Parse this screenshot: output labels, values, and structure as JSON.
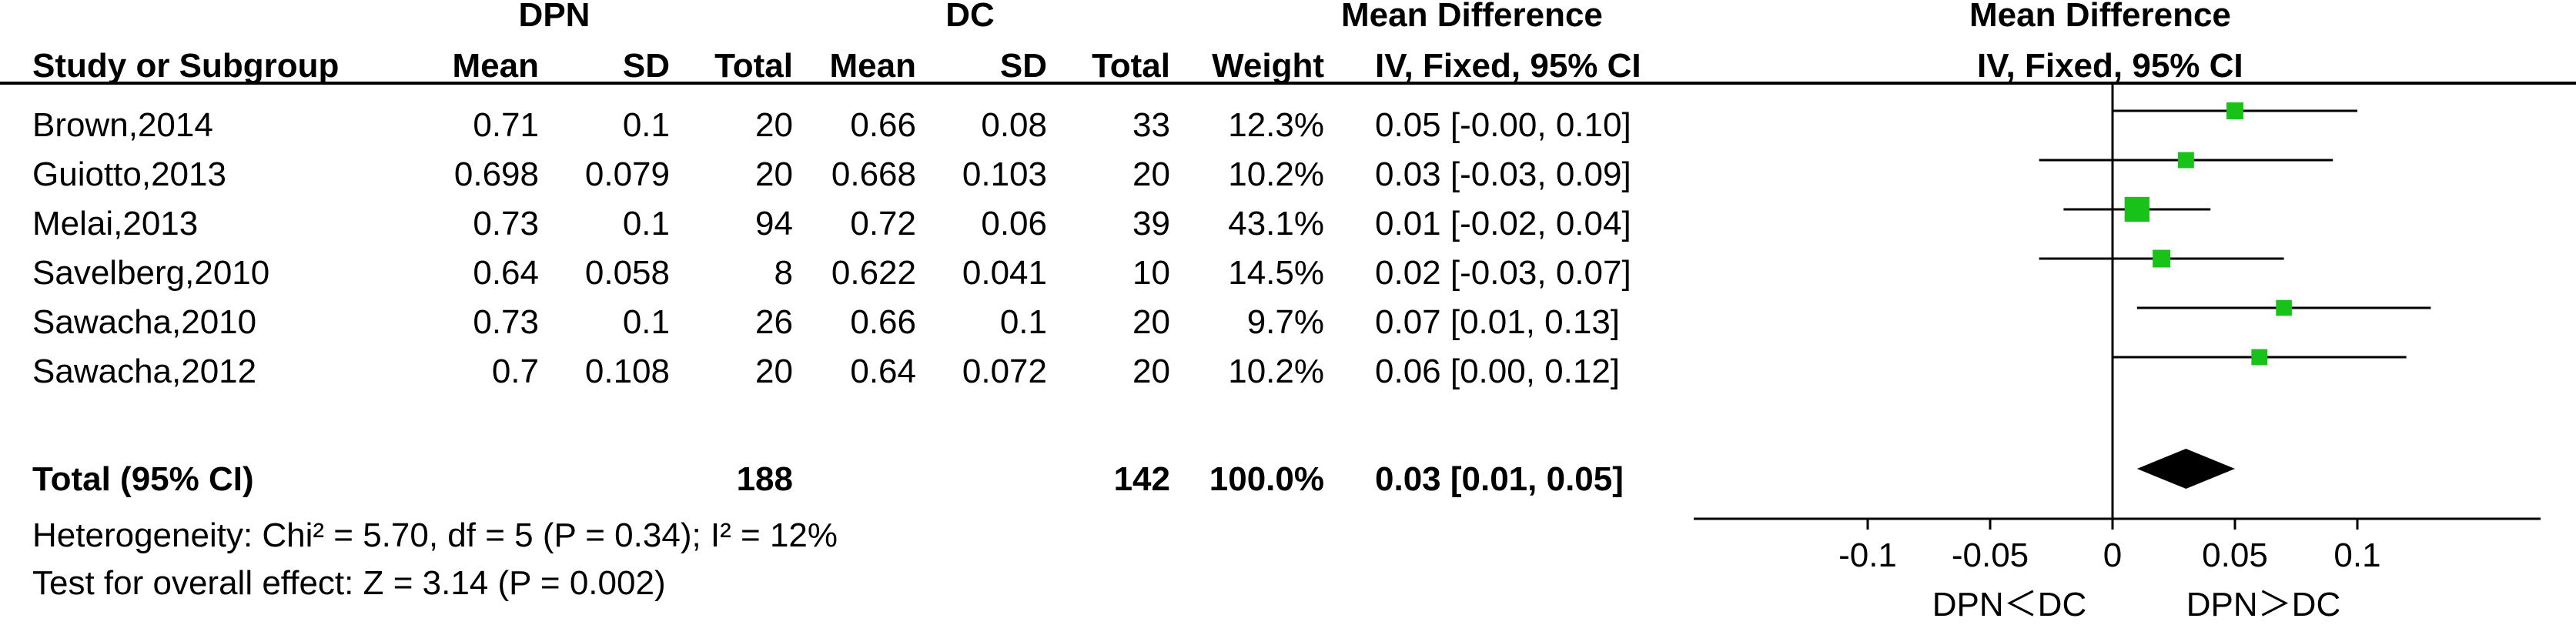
{
  "headers": {
    "group_dpn": "DPN",
    "group_dc": "DC",
    "mean_diff": "Mean Difference",
    "study_col": "Study or Subgroup",
    "mean": "Mean",
    "sd": "SD",
    "total": "Total",
    "weight": "Weight",
    "method": "IV, Fixed, 95% CI",
    "plot_title": "Mean Difference",
    "plot_method": "IV, Fixed, 95% CI"
  },
  "studies": [
    {
      "name": "Brown,2014",
      "dpn_mean": "0.71",
      "dpn_sd": "0.1",
      "dpn_total": "20",
      "dc_mean": "0.66",
      "dc_sd": "0.08",
      "dc_total": "33",
      "weight": "12.3%",
      "ci": "0.05 [-0.00, 0.10]"
    },
    {
      "name": "Guiotto,2013",
      "dpn_mean": "0.698",
      "dpn_sd": "0.079",
      "dpn_total": "20",
      "dc_mean": "0.668",
      "dc_sd": "0.103",
      "dc_total": "20",
      "weight": "10.2%",
      "ci": "0.03 [-0.03, 0.09]"
    },
    {
      "name": "Melai,2013",
      "dpn_mean": "0.73",
      "dpn_sd": "0.1",
      "dpn_total": "94",
      "dc_mean": "0.72",
      "dc_sd": "0.06",
      "dc_total": "39",
      "weight": "43.1%",
      "ci": "0.01 [-0.02, 0.04]"
    },
    {
      "name": "Savelberg,2010",
      "dpn_mean": "0.64",
      "dpn_sd": "0.058",
      "dpn_total": "8",
      "dc_mean": "0.622",
      "dc_sd": "0.041",
      "dc_total": "10",
      "weight": "14.5%",
      "ci": "0.02 [-0.03, 0.07]"
    },
    {
      "name": "Sawacha,2010",
      "dpn_mean": "0.73",
      "dpn_sd": "0.1",
      "dpn_total": "26",
      "dc_mean": "0.66",
      "dc_sd": "0.1",
      "dc_total": "20",
      "weight": "9.7%",
      "ci": "0.07 [0.01, 0.13]"
    },
    {
      "name": "Sawacha,2012",
      "dpn_mean": "0.7",
      "dpn_sd": "0.108",
      "dpn_total": "20",
      "dc_mean": "0.64",
      "dc_sd": "0.072",
      "dc_total": "20",
      "weight": "10.2%",
      "ci": "0.06 [0.00, 0.12]"
    }
  ],
  "total_row": {
    "label": "Total (95% CI)",
    "dpn_total": "188",
    "dc_total": "142",
    "weight": "100.0%",
    "ci": "0.03 [0.01, 0.05]"
  },
  "heterogeneity": "Heterogeneity: Chi² = 5.70, df = 5 (P = 0.34); I² = 12%",
  "overall_test": "Test for overall effect: Z = 3.14 (P = 0.002)",
  "axis_left_label": "DPN＜DC",
  "axis_right_label": "DPN＞DC",
  "colors": {
    "square": "#19c219",
    "diamond": "#000000",
    "line": "#000000"
  },
  "chart_data": {
    "type": "forest",
    "x_ticks": [
      -0.1,
      -0.05,
      0,
      0.05,
      0.1
    ],
    "x_tick_labels": [
      "-0.1",
      "-0.05",
      "0",
      "0.05",
      "0.1"
    ],
    "points": [
      {
        "study": "Brown,2014",
        "md": 0.05,
        "lo": -0.0,
        "hi": 0.1,
        "weight": 12.3
      },
      {
        "study": "Guiotto,2013",
        "md": 0.03,
        "lo": -0.03,
        "hi": 0.09,
        "weight": 10.2
      },
      {
        "study": "Melai,2013",
        "md": 0.01,
        "lo": -0.02,
        "hi": 0.04,
        "weight": 43.1
      },
      {
        "study": "Savelberg,2010",
        "md": 0.02,
        "lo": -0.03,
        "hi": 0.07,
        "weight": 14.5
      },
      {
        "study": "Sawacha,2010",
        "md": 0.07,
        "lo": 0.01,
        "hi": 0.13,
        "weight": 9.7
      },
      {
        "study": "Sawacha,2012",
        "md": 0.06,
        "lo": 0.0,
        "hi": 0.12,
        "weight": 10.2
      }
    ],
    "pooled": {
      "md": 0.03,
      "lo": 0.01,
      "hi": 0.05
    }
  }
}
